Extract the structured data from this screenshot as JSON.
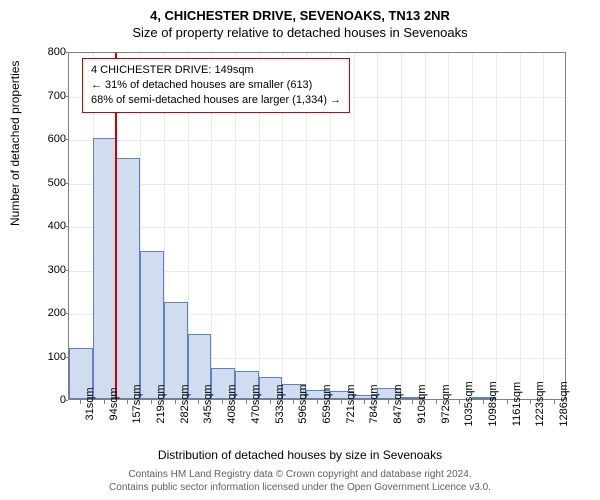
{
  "title": "4, CHICHESTER DRIVE, SEVENOAKS, TN13 2NR",
  "subtitle": "Size of property relative to detached houses in Sevenoaks",
  "chart": {
    "type": "histogram",
    "x_categories": [
      "31sqm",
      "94sqm",
      "157sqm",
      "219sqm",
      "282sqm",
      "345sqm",
      "408sqm",
      "470sqm",
      "533sqm",
      "596sqm",
      "659sqm",
      "721sqm",
      "784sqm",
      "847sqm",
      "910sqm",
      "972sqm",
      "1035sqm",
      "1098sqm",
      "1161sqm",
      "1223sqm",
      "1286sqm"
    ],
    "values": [
      118,
      600,
      555,
      340,
      222,
      150,
      72,
      65,
      50,
      35,
      20,
      18,
      10,
      25,
      5,
      0,
      0,
      5,
      0,
      0,
      0
    ],
    "ylim": [
      0,
      800
    ],
    "ytick_step": 100,
    "bar_fill": "#d0dcf0",
    "bar_stroke": "#6080c0",
    "grid_color": "#e8e8f0",
    "border_color": "#808080",
    "background_color": "#ffffff",
    "marker": {
      "color": "#cc0000",
      "index_after": 1
    }
  },
  "callout": {
    "line1": "4 CHICHESTER DRIVE: 149sqm",
    "line2": "← 31% of detached houses are smaller (613)",
    "line3": "68% of semi-detached houses are larger (1,334) →",
    "border_color": "#cc0000"
  },
  "axes": {
    "ylabel": "Number of detached properties",
    "xlabel": "Distribution of detached houses by size in Sevenoaks",
    "label_fontsize": 12,
    "tick_fontsize": 11
  },
  "footer": {
    "line1": "Contains HM Land Registry data © Crown copyright and database right 2024.",
    "line2": "Contains public sector information licensed under the Open Government Licence v3.0."
  }
}
